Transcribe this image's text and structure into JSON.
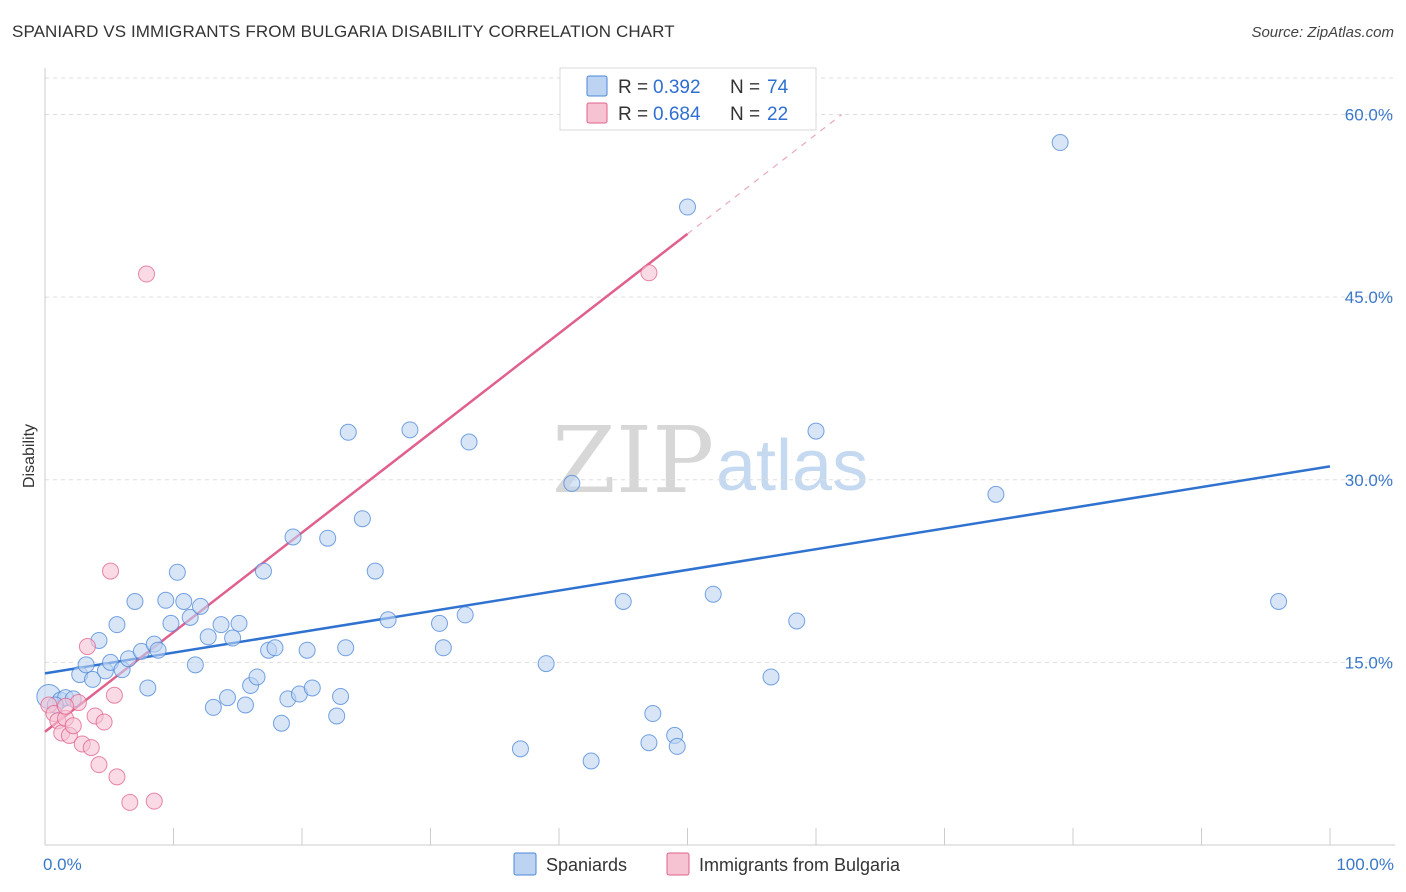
{
  "header": {
    "title": "SPANIARD VS IMMIGRANTS FROM BULGARIA DISABILITY CORRELATION CHART",
    "source": "Source: ZipAtlas.com"
  },
  "colors": {
    "blue": "#4a86d8",
    "blue_fill": "#bcd4f2",
    "pink": "#e0608e",
    "pink_fill": "#f6c3d3",
    "tick_text": "#3a78c8",
    "grid": "#dddddd"
  },
  "chart_data": {
    "type": "scatter",
    "title": "SPANIARD VS IMMIGRANTS FROM BULGARIA DISABILITY CORRELATION CHART",
    "xlabel": "",
    "ylabel": "Disability",
    "xlim": [
      0,
      100
    ],
    "ylim": [
      0,
      63
    ],
    "x_tick_labels": [
      {
        "value": 0,
        "label": "0.0%"
      },
      {
        "value": 100,
        "label": "100.0%"
      }
    ],
    "y_tick_labels": [
      {
        "value": 15,
        "label": "15.0%"
      },
      {
        "value": 30,
        "label": "30.0%"
      },
      {
        "value": 45,
        "label": "45.0%"
      },
      {
        "value": 60,
        "label": "60.0%"
      }
    ],
    "watermark": {
      "zip": "ZIP",
      "atlas": "atlas"
    },
    "legend": [
      {
        "series": "Spaniards",
        "r_label": "R =",
        "r": "0.392",
        "n_label": "N =",
        "n": "74"
      },
      {
        "series": "Immigrants from Bulgaria",
        "r_label": "R =",
        "r": "0.684",
        "n_label": "N =",
        "n": "22"
      }
    ],
    "series": [
      {
        "name": "Spaniards",
        "color": "#4a86d8",
        "trend": {
          "x1": 0,
          "y1": 14.1,
          "x2": 100,
          "y2": 31.1
        },
        "points": [
          [
            0.3,
            12.2
          ],
          [
            1.2,
            11.9
          ],
          [
            1.6,
            12.1
          ],
          [
            2.2,
            12.0
          ],
          [
            2.7,
            14.0
          ],
          [
            3.2,
            14.8
          ],
          [
            3.7,
            13.6
          ],
          [
            4.2,
            16.8
          ],
          [
            4.7,
            14.3
          ],
          [
            5.1,
            15.0
          ],
          [
            5.6,
            18.1
          ],
          [
            6.0,
            14.4
          ],
          [
            6.5,
            15.3
          ],
          [
            7.0,
            20.0
          ],
          [
            7.5,
            15.9
          ],
          [
            8.0,
            12.9
          ],
          [
            8.5,
            16.5
          ],
          [
            8.8,
            16.0
          ],
          [
            9.4,
            20.1
          ],
          [
            9.8,
            18.2
          ],
          [
            10.3,
            22.4
          ],
          [
            10.8,
            20.0
          ],
          [
            11.3,
            18.7
          ],
          [
            11.7,
            14.8
          ],
          [
            12.1,
            19.6
          ],
          [
            12.7,
            17.1
          ],
          [
            13.1,
            11.3
          ],
          [
            13.7,
            18.1
          ],
          [
            14.2,
            12.1
          ],
          [
            14.6,
            17.0
          ],
          [
            15.1,
            18.2
          ],
          [
            15.6,
            11.5
          ],
          [
            16.0,
            13.1
          ],
          [
            16.5,
            13.8
          ],
          [
            17.0,
            22.5
          ],
          [
            17.4,
            16.0
          ],
          [
            17.9,
            16.2
          ],
          [
            18.4,
            10.0
          ],
          [
            18.9,
            12.0
          ],
          [
            19.3,
            25.3
          ],
          [
            19.8,
            12.4
          ],
          [
            20.4,
            16.0
          ],
          [
            20.8,
            12.9
          ],
          [
            22.0,
            25.2
          ],
          [
            22.7,
            10.6
          ],
          [
            23.0,
            12.2
          ],
          [
            23.4,
            16.2
          ],
          [
            23.6,
            33.9
          ],
          [
            24.7,
            26.8
          ],
          [
            25.7,
            22.5
          ],
          [
            26.7,
            18.5
          ],
          [
            28.4,
            34.1
          ],
          [
            30.7,
            18.2
          ],
          [
            31.0,
            16.2
          ],
          [
            32.7,
            18.9
          ],
          [
            33.0,
            33.1
          ],
          [
            37.0,
            7.9
          ],
          [
            39.0,
            14.9
          ],
          [
            41.0,
            29.7
          ],
          [
            42.5,
            6.9
          ],
          [
            45.0,
            20.0
          ],
          [
            47.0,
            8.4
          ],
          [
            47.3,
            10.8
          ],
          [
            49.0,
            9.0
          ],
          [
            49.2,
            8.1
          ],
          [
            50.0,
            52.4
          ],
          [
            52.0,
            20.6
          ],
          [
            56.5,
            13.8
          ],
          [
            58.5,
            18.4
          ],
          [
            60.0,
            34.0
          ],
          [
            74.0,
            28.8
          ],
          [
            79.0,
            57.7
          ],
          [
            96.0,
            20.0
          ],
          [
            0.8,
            11.5
          ]
        ]
      },
      {
        "name": "Immigrants from Bulgaria",
        "color": "#e0608e",
        "trend": {
          "x1": 0,
          "y1": 9.3,
          "x2": 50,
          "y2": 50.2,
          "dash_x2": 62,
          "dash_y2": 60.0
        },
        "points": [
          [
            0.3,
            11.5
          ],
          [
            0.7,
            10.8
          ],
          [
            1.0,
            10.2
          ],
          [
            1.3,
            9.2
          ],
          [
            1.6,
            10.4
          ],
          [
            1.9,
            9.0
          ],
          [
            2.2,
            9.8
          ],
          [
            2.6,
            11.7
          ],
          [
            2.9,
            8.3
          ],
          [
            3.3,
            16.3
          ],
          [
            3.6,
            8.0
          ],
          [
            3.9,
            10.6
          ],
          [
            4.2,
            6.6
          ],
          [
            4.6,
            10.1
          ],
          [
            5.1,
            22.5
          ],
          [
            5.4,
            12.3
          ],
          [
            5.6,
            5.6
          ],
          [
            6.6,
            3.5
          ],
          [
            7.9,
            46.9
          ],
          [
            8.5,
            3.6
          ],
          [
            47.0,
            47.0
          ],
          [
            1.6,
            11.4
          ]
        ]
      }
    ]
  }
}
